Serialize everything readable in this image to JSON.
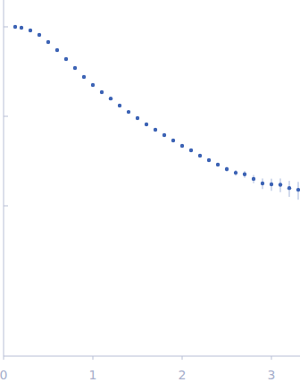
{
  "chart_data": {
    "type": "scatter",
    "marker": "circle",
    "color": "#3b62b4",
    "log": "y",
    "tick_labels": "x",
    "xlim": [
      0,
      3.32
    ],
    "xticks": [
      0,
      1,
      2,
      3
    ],
    "ylim": [
      0.000209,
      1.995
    ],
    "yticks": [
      0.01,
      0.1,
      1
    ],
    "x": [
      0.13,
      0.2,
      0.3,
      0.4,
      0.5,
      0.6,
      0.7,
      0.8,
      0.9,
      1.0,
      1.1,
      1.2,
      1.3,
      1.4,
      1.5,
      1.6,
      1.7,
      1.8,
      1.9,
      2.0,
      2.1,
      2.2,
      2.3,
      2.4,
      2.5,
      2.6,
      2.7,
      2.8,
      2.9,
      3.0,
      3.1,
      3.2,
      3.3
    ],
    "values": [
      1.0,
      0.977,
      0.912,
      0.813,
      0.676,
      0.55,
      0.437,
      0.347,
      0.275,
      0.224,
      0.186,
      0.158,
      0.132,
      0.112,
      0.0955,
      0.0813,
      0.0708,
      0.0617,
      0.0537,
      0.0468,
      0.0417,
      0.0363,
      0.0324,
      0.0288,
      0.0257,
      0.0234,
      0.0225,
      0.02,
      0.0178,
      0.0174,
      0.0172,
      0.0158,
      0.0151
    ],
    "errors": [
      0.005,
      0.005,
      0.004,
      0.004,
      0.003,
      0.003,
      0.002,
      0.002,
      0.0015,
      0.0012,
      0.001,
      0.0009,
      0.0008,
      0.0007,
      0.0007,
      0.0007,
      0.0007,
      0.0008,
      0.0008,
      0.0009,
      0.001,
      0.0011,
      0.0012,
      0.0013,
      0.0015,
      0.0017,
      0.0019,
      0.0021,
      0.0024,
      0.0027,
      0.003,
      0.0032,
      0.0034
    ]
  }
}
